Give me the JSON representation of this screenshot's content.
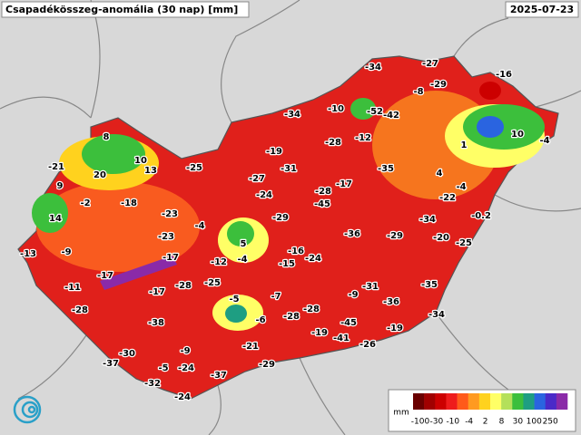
{
  "header": {
    "title": "Csapadékösszeg-anomália (30 nap) [mm]",
    "date": "2025-07-23"
  },
  "stations": [
    -34,
    -27,
    -16,
    -8,
    -29,
    -10,
    -52,
    -42,
    -34,
    8,
    -12,
    -28,
    10,
    -4,
    1,
    10,
    -19,
    -21,
    13,
    -25,
    -31,
    -35,
    4,
    20,
    -27,
    -17,
    9,
    -28,
    -4,
    -24,
    -2,
    -18,
    -22,
    -45,
    -23,
    -29,
    -34,
    -0.2,
    14,
    -4,
    -36,
    -29,
    -20,
    -23,
    5,
    -25,
    -16,
    -13,
    -9,
    -4,
    -17,
    -12,
    -24,
    -15,
    -17,
    -11,
    -28,
    -25,
    -17,
    -35,
    -31,
    -9,
    -7,
    -5,
    -36,
    -28,
    -28,
    -6,
    -28,
    -34,
    -38,
    -45,
    -19,
    -19,
    -41,
    -21,
    -9,
    -26,
    -30,
    -37,
    -5,
    -24,
    -29,
    -37,
    -32,
    -24
  ],
  "legend": {
    "unit": "mm",
    "ticks": [
      -100,
      -30,
      -10,
      -4,
      2,
      8,
      30,
      100,
      250
    ],
    "colors": [
      "#6a0000",
      "#a00000",
      "#cc0000",
      "#ee1c1c",
      "#ff5a1a",
      "#ff9a20",
      "#ffd21e",
      "#ffff66",
      "#b4e05a",
      "#3cbf3c",
      "#1e9e82",
      "#2a64e0",
      "#4a2ac8",
      "#8a2aa8"
    ]
  }
}
